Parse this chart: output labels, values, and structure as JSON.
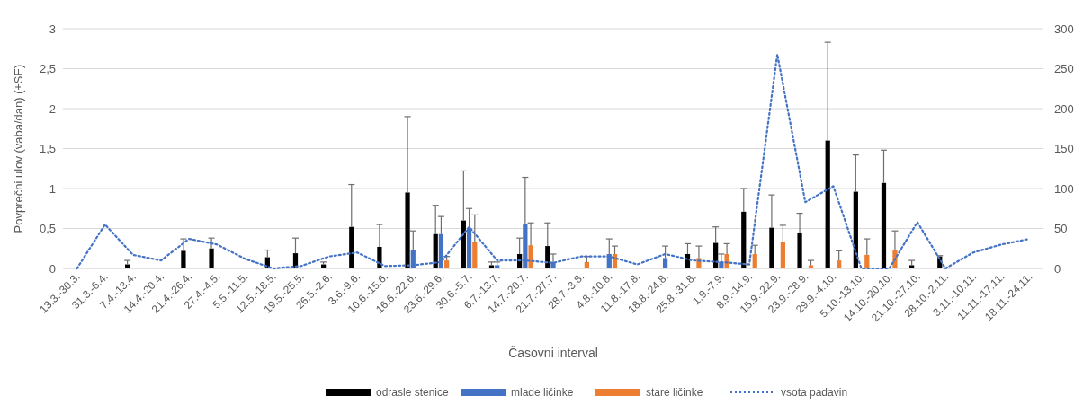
{
  "chart_data": {
    "type": "bar",
    "xlabel": "Časovni interval",
    "ylabel": "Povprečni ulov (vaba/dan) (±SE)",
    "categories": [
      "13.3.-30.3.",
      "31.3.-6.4.",
      "7.4.-13.4.",
      "14.4.-20.4.",
      "21.4.-26.4.",
      "27.4.-4.5.",
      "5.5.-11.5.",
      "12.5.-18.5.",
      "19.5.-25.5.",
      "26.5.-2.6.",
      "3.6.-9.6.",
      "10.6.-15.6.",
      "16.6.-22.6.",
      "23.6.-29.6.",
      "30.6.-5.7.",
      "6.7.-13.7.",
      "14.7.-20.7.",
      "21.7.-27.7.",
      "28.7.-3.8.",
      "4.8.-10.8.",
      "11.8.-17.8.",
      "18.8.-24.8.",
      "25.8.-31.8.",
      "1.9.-7.9.",
      "8.9.-14.9.",
      "15.9.-22.9.",
      "23.9.-28.9.",
      "29.9.-4.10.",
      "5.10.-13.10.",
      "14.10.-20.10.",
      "21.10.-27.10.",
      "28.10.-2.11.",
      "3.11.-10.11.",
      "11.11.-17.11.",
      "18.11.-24.11."
    ],
    "series": [
      {
        "name": "odrasle stenice",
        "color": "#000000",
        "values": [
          null,
          null,
          0.05,
          null,
          0.22,
          0.25,
          null,
          0.14,
          0.19,
          0.05,
          0.52,
          0.27,
          0.95,
          0.43,
          0.6,
          0.04,
          0.18,
          0.28,
          null,
          null,
          null,
          null,
          0.18,
          0.32,
          0.71,
          0.51,
          0.45,
          1.6,
          0.96,
          1.07,
          0.04,
          0.15,
          null,
          null,
          null
        ],
        "errors": [
          null,
          null,
          0.05,
          null,
          0.15,
          0.13,
          null,
          0.09,
          0.19,
          0.03,
          0.53,
          0.28,
          0.95,
          0.36,
          0.62,
          0.04,
          0.2,
          0.29,
          null,
          null,
          null,
          null,
          0.13,
          0.2,
          0.29,
          0.41,
          0.24,
          1.23,
          0.46,
          0.41,
          0.06,
          0.01,
          null,
          null,
          null
        ]
      },
      {
        "name": "mlade ličinke",
        "color": "#4472c4",
        "values": [
          null,
          null,
          null,
          null,
          null,
          null,
          null,
          null,
          null,
          null,
          null,
          null,
          0.23,
          0.43,
          0.5,
          0.04,
          0.56,
          0.08,
          null,
          0.18,
          null,
          0.13,
          null,
          0.08,
          null,
          null,
          null,
          null,
          null,
          null,
          null,
          null,
          null,
          null,
          null
        ],
        "errors": [
          null,
          null,
          null,
          null,
          null,
          null,
          null,
          null,
          null,
          null,
          null,
          null,
          0.24,
          0.22,
          0.25,
          0.04,
          0.58,
          0.1,
          null,
          0.19,
          null,
          0.15,
          null,
          0.1,
          null,
          null,
          null,
          null,
          null,
          null,
          null,
          null,
          null,
          null,
          null
        ]
      },
      {
        "name": "stare ličinke",
        "color": "#ed7d31",
        "values": [
          null,
          null,
          null,
          null,
          null,
          null,
          null,
          null,
          null,
          null,
          null,
          null,
          null,
          0.1,
          0.33,
          null,
          0.29,
          null,
          0.08,
          0.18,
          null,
          null,
          0.13,
          0.18,
          0.18,
          0.33,
          0.04,
          0.1,
          0.17,
          0.23,
          null,
          null,
          null,
          null,
          null
        ],
        "errors": [
          null,
          null,
          null,
          null,
          null,
          null,
          null,
          null,
          null,
          null,
          null,
          null,
          null,
          0.05,
          0.34,
          null,
          0.28,
          null,
          0.07,
          0.1,
          null,
          null,
          0.15,
          0.13,
          0.11,
          0.21,
          0.06,
          0.12,
          0.2,
          0.24,
          null,
          null,
          null,
          null,
          null
        ]
      },
      {
        "name": "vsota padavin",
        "type": "line",
        "axis": "y2",
        "color": "#4472c4",
        "line_style": "dotted",
        "values": [
          0,
          55,
          17,
          10,
          37,
          30,
          12,
          0,
          3,
          15,
          20,
          3,
          4,
          8,
          52,
          10,
          10,
          7,
          15,
          15,
          5,
          18,
          10,
          8,
          5,
          268,
          83,
          103,
          0,
          0,
          58,
          0,
          20,
          30,
          37
        ]
      }
    ],
    "ylim": [
      0,
      3
    ],
    "yticks": [
      0,
      {
        "value": 0.5,
        "label": "0,5"
      },
      1,
      {
        "value": 1.5,
        "label": "1,5"
      },
      2,
      {
        "value": 2.5,
        "label": "2,5"
      },
      3
    ],
    "y2lim": [
      0,
      300
    ],
    "y2ticks": [
      0,
      50,
      100,
      150,
      200,
      250,
      300
    ],
    "grid": "y",
    "legend": "bottom"
  }
}
